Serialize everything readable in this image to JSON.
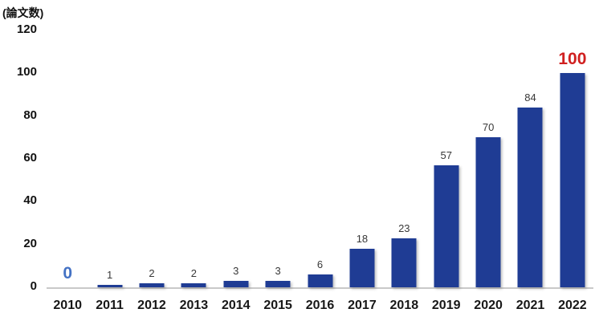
{
  "chart_data": {
    "type": "bar",
    "title": "(論文数)",
    "ylabel": "(論文数)",
    "xlabel": "",
    "categories": [
      "2010",
      "2011",
      "2012",
      "2013",
      "2014",
      "2015",
      "2016",
      "2017",
      "2018",
      "2019",
      "2020",
      "2021",
      "2022"
    ],
    "values": [
      0,
      1,
      2,
      2,
      3,
      3,
      6,
      18,
      23,
      57,
      70,
      84,
      100
    ],
    "ylim": [
      0,
      120
    ],
    "yticks": [
      0,
      20,
      40,
      60,
      80,
      100,
      120
    ],
    "grid": false,
    "legend": null,
    "bar_color": "#1f3c94",
    "axis_color": "#c9c9c9",
    "data_label_color": "#383838",
    "emphasis_labels": {
      "0": {
        "category": "2010",
        "color": "#4472c4"
      },
      "12": {
        "category": "2022",
        "color": "#d02020"
      }
    }
  }
}
